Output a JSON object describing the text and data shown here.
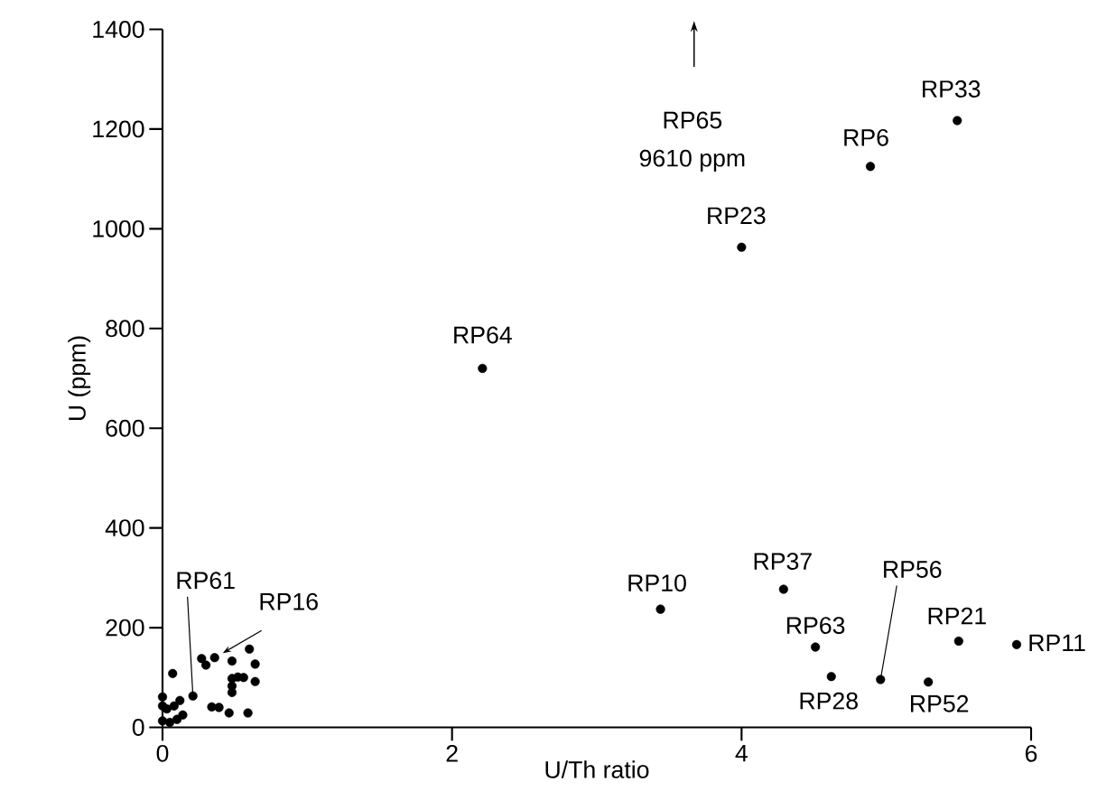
{
  "chart_data": {
    "type": "scatter",
    "xlabel": "U/Th ratio",
    "ylabel": "U (ppm)",
    "color": "#000000",
    "grid": false,
    "x": [
      3.44,
      4.29,
      4.51,
      4.62,
      4.96,
      5.29,
      5.5,
      5.9,
      5.49,
      4.89,
      4.0,
      2.21,
      0.07,
      0.21,
      0.12,
      0.27,
      0.3,
      0.36,
      0.48,
      0.6,
      0.64,
      0.48,
      0.52,
      0.56,
      0.48,
      0.48,
      0.64,
      0.34,
      0.39,
      0.46,
      0.59,
      0.0,
      0.0,
      0.02,
      0.07,
      0.14,
      0.0,
      0.05,
      0.1,
      0.03,
      0.08
    ],
    "values": [
      237,
      277,
      161,
      102,
      96,
      91,
      173,
      166,
      1217,
      1125,
      963,
      720,
      108,
      63,
      54,
      138,
      125,
      140,
      133,
      157,
      127,
      98,
      101,
      100,
      83,
      70,
      92,
      41,
      40,
      29,
      29,
      61,
      43,
      null,
      null,
      25,
      13,
      10,
      16,
      37,
      43
    ],
    "xlim": [
      0,
      6
    ],
    "ylim": [
      0,
      1400
    ],
    "xticks": [
      0,
      2,
      4,
      6
    ],
    "yticks": [
      0,
      200,
      400,
      600,
      800,
      1000,
      1200,
      1400
    ],
    "annotations": [
      "RP65",
      "9610 ppm",
      {
        "text": "RP33",
        "x": 5.49,
        "y": 1217
      },
      {
        "text": "RP6",
        "x": 4.89,
        "y": 1125
      },
      {
        "text": "RP23",
        "x": 4.0,
        "y": 963
      },
      {
        "text": "RP64",
        "x": 2.21,
        "y": 720
      },
      {
        "text": "RP10",
        "x": 3.44,
        "y": 237
      },
      {
        "text": "RP37",
        "x": 4.29,
        "y": 277
      },
      {
        "text": "RP63",
        "x": 4.51,
        "y": 161
      },
      {
        "text": "RP28",
        "x": 4.62,
        "y": 102
      },
      {
        "text": "RP52",
        "x": 5.29,
        "y": 91
      },
      {
        "text": "RP21",
        "x": 5.5,
        "y": 173
      },
      {
        "text": "RP11",
        "x": 5.9,
        "y": 166
      },
      {
        "text": "RP56",
        "x": 4.96,
        "y": 96
      },
      {
        "text": "RP61",
        "x": 0.21,
        "y": 63
      },
      {
        "text": "RP16",
        "x": 0.36,
        "y": 140
      }
    ]
  }
}
